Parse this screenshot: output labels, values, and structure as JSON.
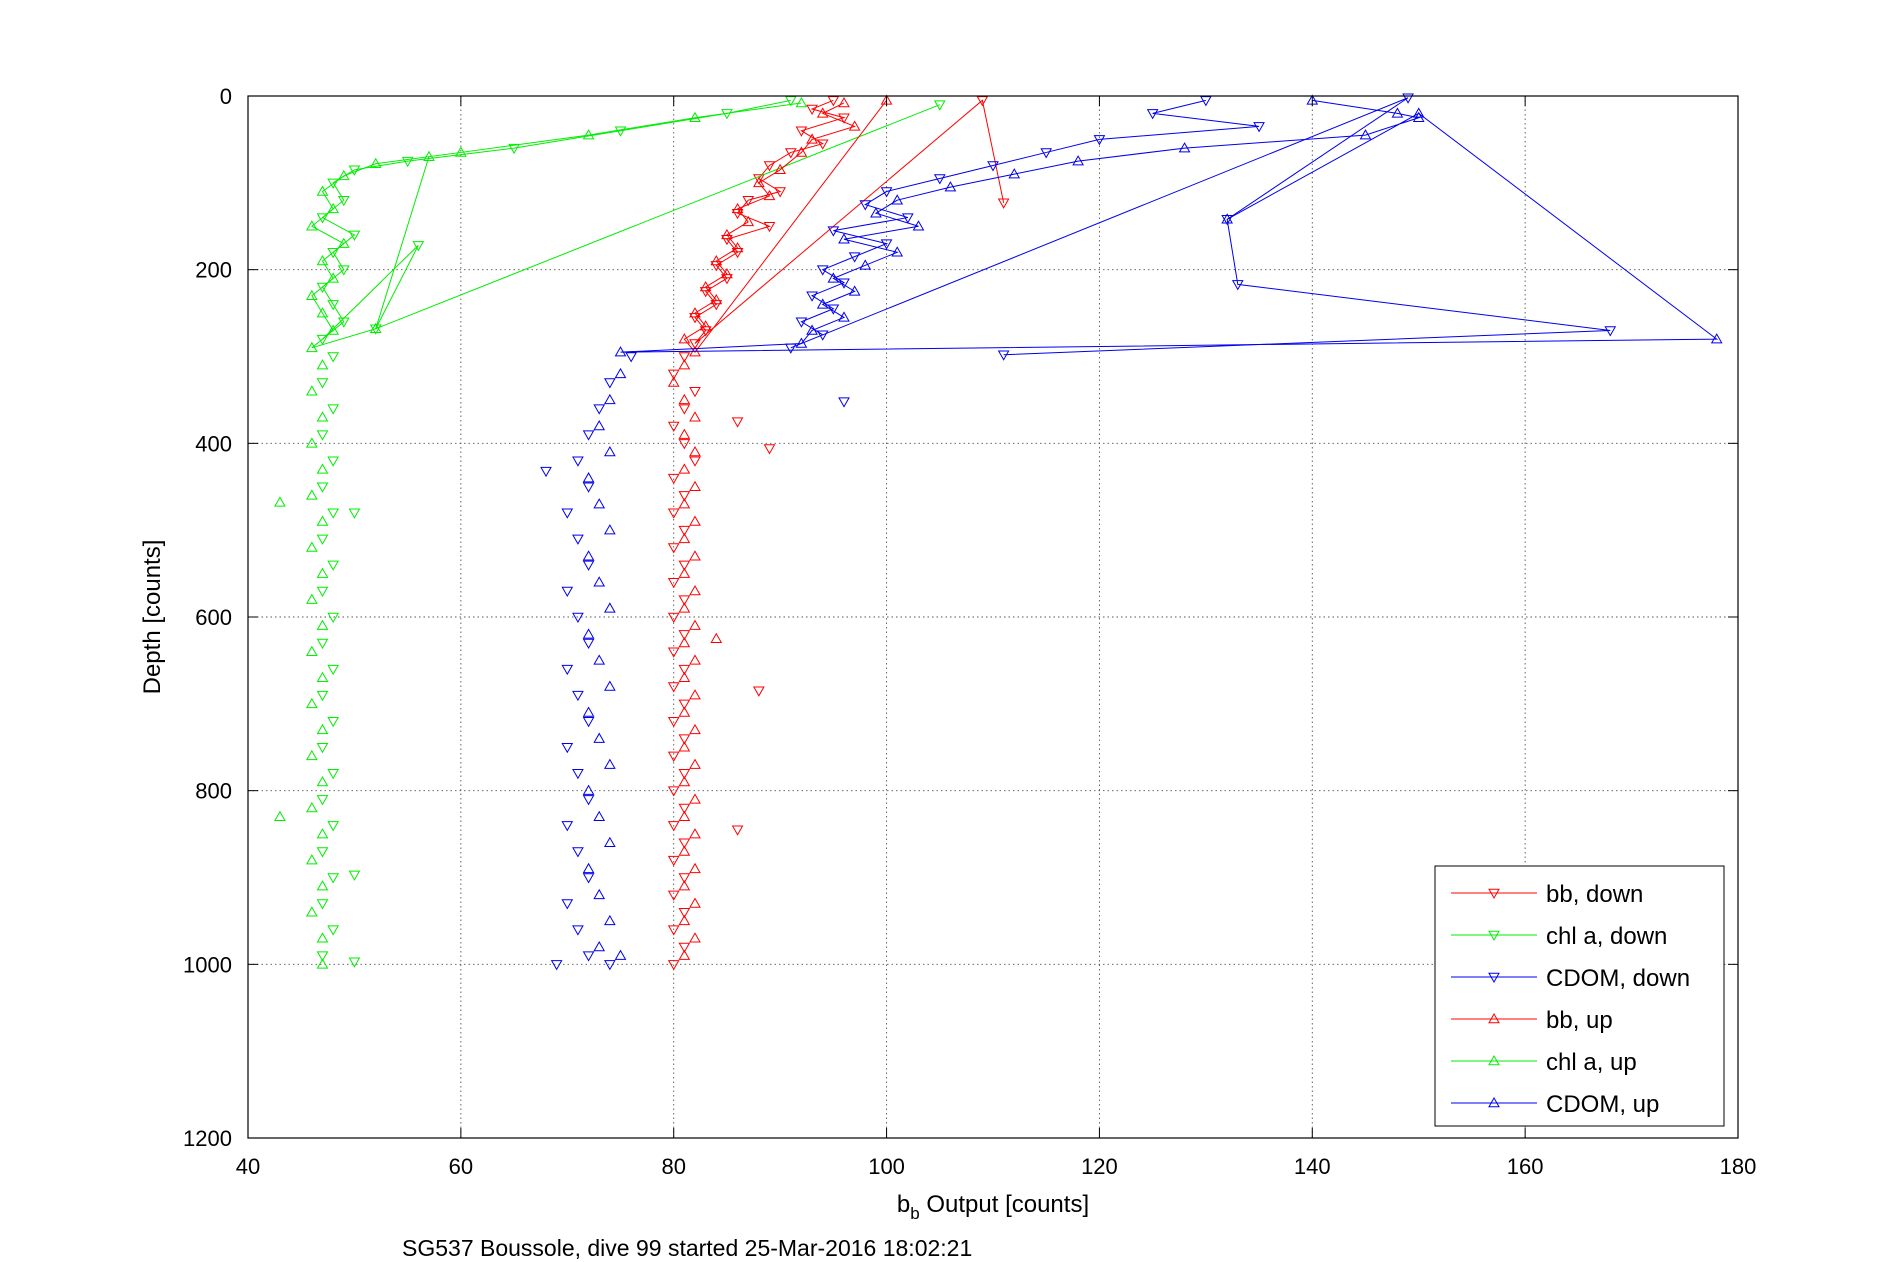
{
  "chart_data": {
    "type": "scatter",
    "title": "",
    "caption": "SG537 Boussole, dive 99 started 25-Mar-2016 18:02:21",
    "xlabel_main": "b",
    "xlabel_sub": "b",
    "xlabel_rest": " Output [counts]",
    "ylabel": "Depth [counts]",
    "xlim": [
      40,
      180
    ],
    "ylim": [
      0,
      1200
    ],
    "y_reversed": true,
    "xticks": [
      40,
      60,
      80,
      100,
      120,
      140,
      160,
      180
    ],
    "yticks": [
      0,
      200,
      400,
      600,
      800,
      1000,
      1200
    ],
    "grid": true,
    "legend_position": "bottom-right",
    "series": [
      {
        "name": "bb, down",
        "color": "#ff0000",
        "marker": "triangle-down",
        "points": [
          [
            95,
            5
          ],
          [
            93,
            15
          ],
          [
            96,
            25
          ],
          [
            92,
            40
          ],
          [
            94,
            55
          ],
          [
            91,
            65
          ],
          [
            89,
            80
          ],
          [
            88,
            95
          ],
          [
            90,
            110
          ],
          [
            87,
            120
          ],
          [
            86,
            135
          ],
          [
            89,
            150
          ],
          [
            85,
            165
          ],
          [
            86,
            180
          ],
          [
            84,
            195
          ],
          [
            85,
            210
          ],
          [
            83,
            225
          ],
          [
            84,
            240
          ],
          [
            82,
            255
          ],
          [
            83,
            270
          ],
          [
            82,
            285
          ],
          [
            81,
            300
          ],
          [
            80,
            320
          ],
          [
            82,
            340
          ],
          [
            81,
            360
          ],
          [
            80,
            380
          ],
          [
            81,
            400
          ],
          [
            82,
            420
          ],
          [
            80,
            440
          ],
          [
            81,
            460
          ],
          [
            80,
            480
          ],
          [
            81,
            500
          ],
          [
            80,
            520
          ],
          [
            81,
            540
          ],
          [
            80,
            560
          ],
          [
            81,
            580
          ],
          [
            80,
            600
          ],
          [
            81,
            620
          ],
          [
            80,
            640
          ],
          [
            81,
            660
          ],
          [
            80,
            680
          ],
          [
            81,
            700
          ],
          [
            80,
            720
          ],
          [
            81,
            740
          ],
          [
            80,
            760
          ],
          [
            81,
            780
          ],
          [
            80,
            800
          ],
          [
            81,
            820
          ],
          [
            80,
            840
          ],
          [
            81,
            860
          ],
          [
            80,
            880
          ],
          [
            81,
            900
          ],
          [
            80,
            920
          ],
          [
            81,
            940
          ],
          [
            80,
            960
          ],
          [
            81,
            980
          ],
          [
            80,
            1000
          ],
          [
            89,
            406
          ],
          [
            86,
            375
          ],
          [
            88,
            685
          ],
          [
            86,
            845
          ],
          [
            109,
            5
          ],
          [
            111,
            123
          ]
        ]
      },
      {
        "name": "chl a, down",
        "color": "#00ee00",
        "marker": "triangle-down",
        "points": [
          [
            91,
            5
          ],
          [
            85,
            20
          ],
          [
            75,
            40
          ],
          [
            65,
            60
          ],
          [
            55,
            75
          ],
          [
            50,
            85
          ],
          [
            48,
            100
          ],
          [
            49,
            120
          ],
          [
            47,
            140
          ],
          [
            50,
            160
          ],
          [
            48,
            180
          ],
          [
            49,
            200
          ],
          [
            47,
            220
          ],
          [
            48,
            240
          ],
          [
            49,
            260
          ],
          [
            47,
            280
          ],
          [
            48,
            300
          ],
          [
            47,
            330
          ],
          [
            48,
            360
          ],
          [
            47,
            390
          ],
          [
            48,
            420
          ],
          [
            47,
            450
          ],
          [
            48,
            480
          ],
          [
            47,
            510
          ],
          [
            48,
            540
          ],
          [
            47,
            570
          ],
          [
            48,
            600
          ],
          [
            47,
            630
          ],
          [
            48,
            660
          ],
          [
            47,
            690
          ],
          [
            48,
            720
          ],
          [
            47,
            750
          ],
          [
            48,
            780
          ],
          [
            47,
            810
          ],
          [
            48,
            840
          ],
          [
            47,
            870
          ],
          [
            48,
            900
          ],
          [
            47,
            930
          ],
          [
            48,
            960
          ],
          [
            47,
            990
          ],
          [
            56,
            172
          ],
          [
            52,
            268
          ],
          [
            50,
            480
          ],
          [
            50,
            897
          ],
          [
            50,
            997
          ],
          [
            105,
            10
          ]
        ]
      },
      {
        "name": "CDOM, down",
        "color": "#0000ee",
        "marker": "triangle-down",
        "points": [
          [
            130,
            5
          ],
          [
            125,
            20
          ],
          [
            135,
            35
          ],
          [
            120,
            50
          ],
          [
            115,
            65
          ],
          [
            110,
            80
          ],
          [
            105,
            95
          ],
          [
            100,
            110
          ],
          [
            98,
            125
          ],
          [
            102,
            140
          ],
          [
            95,
            155
          ],
          [
            100,
            170
          ],
          [
            97,
            185
          ],
          [
            94,
            200
          ],
          [
            96,
            215
          ],
          [
            93,
            230
          ],
          [
            95,
            245
          ],
          [
            92,
            260
          ],
          [
            94,
            275
          ],
          [
            91,
            290
          ],
          [
            76,
            300
          ],
          [
            74,
            330
          ],
          [
            73,
            360
          ],
          [
            72,
            390
          ],
          [
            71,
            420
          ],
          [
            72,
            450
          ],
          [
            70,
            480
          ],
          [
            71,
            510
          ],
          [
            72,
            540
          ],
          [
            70,
            570
          ],
          [
            71,
            600
          ],
          [
            72,
            630
          ],
          [
            70,
            660
          ],
          [
            71,
            690
          ],
          [
            72,
            720
          ],
          [
            70,
            750
          ],
          [
            71,
            780
          ],
          [
            72,
            810
          ],
          [
            70,
            840
          ],
          [
            71,
            870
          ],
          [
            72,
            900
          ],
          [
            70,
            930
          ],
          [
            71,
            960
          ],
          [
            72,
            990
          ],
          [
            149,
            2
          ],
          [
            132,
            142
          ],
          [
            133,
            217
          ],
          [
            168,
            270
          ],
          [
            111,
            298
          ],
          [
            96,
            352
          ],
          [
            68,
            432
          ],
          [
            69,
            1000
          ],
          [
            74,
            1000
          ]
        ]
      },
      {
        "name": "bb, up",
        "color": "#ff0000",
        "marker": "triangle-up",
        "points": [
          [
            96,
            8
          ],
          [
            94,
            20
          ],
          [
            97,
            35
          ],
          [
            93,
            50
          ],
          [
            92,
            65
          ],
          [
            90,
            85
          ],
          [
            88,
            100
          ],
          [
            89,
            115
          ],
          [
            86,
            130
          ],
          [
            87,
            145
          ],
          [
            85,
            160
          ],
          [
            86,
            175
          ],
          [
            84,
            190
          ],
          [
            85,
            205
          ],
          [
            83,
            220
          ],
          [
            84,
            235
          ],
          [
            82,
            250
          ],
          [
            83,
            265
          ],
          [
            81,
            280
          ],
          [
            82,
            295
          ],
          [
            81,
            310
          ],
          [
            80,
            330
          ],
          [
            81,
            350
          ],
          [
            82,
            370
          ],
          [
            81,
            390
          ],
          [
            82,
            410
          ],
          [
            81,
            430
          ],
          [
            82,
            450
          ],
          [
            81,
            470
          ],
          [
            82,
            490
          ],
          [
            81,
            510
          ],
          [
            82,
            530
          ],
          [
            81,
            550
          ],
          [
            82,
            570
          ],
          [
            81,
            590
          ],
          [
            82,
            610
          ],
          [
            81,
            630
          ],
          [
            82,
            650
          ],
          [
            81,
            670
          ],
          [
            82,
            690
          ],
          [
            81,
            710
          ],
          [
            82,
            730
          ],
          [
            81,
            750
          ],
          [
            82,
            770
          ],
          [
            81,
            790
          ],
          [
            82,
            810
          ],
          [
            81,
            830
          ],
          [
            82,
            850
          ],
          [
            81,
            870
          ],
          [
            82,
            890
          ],
          [
            81,
            910
          ],
          [
            82,
            930
          ],
          [
            81,
            950
          ],
          [
            82,
            970
          ],
          [
            81,
            990
          ],
          [
            84,
            625
          ],
          [
            100,
            5
          ]
        ]
      },
      {
        "name": "chl a, up",
        "color": "#00ee00",
        "marker": "triangle-up",
        "points": [
          [
            92,
            8
          ],
          [
            82,
            25
          ],
          [
            72,
            45
          ],
          [
            60,
            65
          ],
          [
            52,
            78
          ],
          [
            49,
            92
          ],
          [
            47,
            110
          ],
          [
            48,
            130
          ],
          [
            46,
            150
          ],
          [
            49,
            170
          ],
          [
            47,
            190
          ],
          [
            48,
            210
          ],
          [
            46,
            230
          ],
          [
            47,
            250
          ],
          [
            48,
            270
          ],
          [
            46,
            290
          ],
          [
            47,
            310
          ],
          [
            46,
            340
          ],
          [
            47,
            370
          ],
          [
            46,
            400
          ],
          [
            47,
            430
          ],
          [
            46,
            460
          ],
          [
            47,
            490
          ],
          [
            46,
            520
          ],
          [
            47,
            550
          ],
          [
            46,
            580
          ],
          [
            47,
            610
          ],
          [
            46,
            640
          ],
          [
            47,
            670
          ],
          [
            46,
            700
          ],
          [
            47,
            730
          ],
          [
            46,
            760
          ],
          [
            47,
            790
          ],
          [
            46,
            820
          ],
          [
            47,
            850
          ],
          [
            46,
            880
          ],
          [
            47,
            910
          ],
          [
            46,
            940
          ],
          [
            47,
            970
          ],
          [
            47,
            1000
          ],
          [
            43,
            468
          ],
          [
            43,
            830
          ],
          [
            52,
            268
          ],
          [
            57,
            70
          ]
        ]
      },
      {
        "name": "CDOM, up",
        "color": "#0000ee",
        "marker": "triangle-up",
        "points": [
          [
            140,
            5
          ],
          [
            148,
            20
          ],
          [
            150,
            25
          ],
          [
            145,
            45
          ],
          [
            128,
            60
          ],
          [
            118,
            75
          ],
          [
            112,
            90
          ],
          [
            106,
            105
          ],
          [
            101,
            120
          ],
          [
            99,
            135
          ],
          [
            103,
            150
          ],
          [
            96,
            165
          ],
          [
            101,
            180
          ],
          [
            98,
            195
          ],
          [
            95,
            210
          ],
          [
            97,
            225
          ],
          [
            94,
            240
          ],
          [
            96,
            255
          ],
          [
            93,
            270
          ],
          [
            92,
            285
          ],
          [
            75,
            295
          ],
          [
            75,
            320
          ],
          [
            74,
            350
          ],
          [
            73,
            380
          ],
          [
            74,
            410
          ],
          [
            72,
            440
          ],
          [
            73,
            470
          ],
          [
            74,
            500
          ],
          [
            72,
            530
          ],
          [
            73,
            560
          ],
          [
            74,
            590
          ],
          [
            72,
            620
          ],
          [
            73,
            650
          ],
          [
            74,
            680
          ],
          [
            72,
            710
          ],
          [
            73,
            740
          ],
          [
            74,
            770
          ],
          [
            72,
            800
          ],
          [
            73,
            830
          ],
          [
            74,
            860
          ],
          [
            72,
            890
          ],
          [
            73,
            920
          ],
          [
            74,
            950
          ],
          [
            73,
            980
          ],
          [
            75,
            990
          ],
          [
            178,
            280
          ],
          [
            150,
            20
          ],
          [
            132,
            142
          ]
        ]
      }
    ]
  }
}
